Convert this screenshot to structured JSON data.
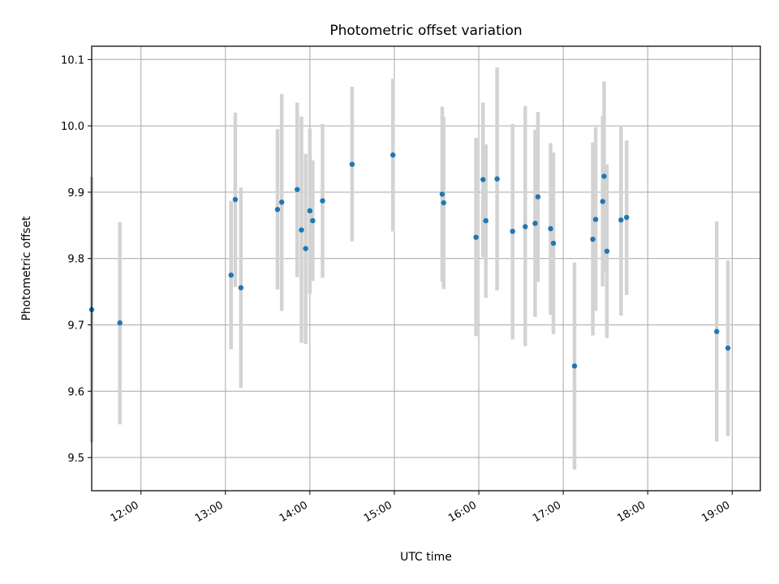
{
  "chart_data": {
    "type": "scatter",
    "title": "Photometric offset variation",
    "xlabel": "UTC time",
    "ylabel": "Photometric offset",
    "grid": true,
    "xlim": [
      "11:25",
      "19:20"
    ],
    "ylim": [
      9.45,
      10.12
    ],
    "x_ticks": [
      "12:00",
      "13:00",
      "14:00",
      "15:00",
      "16:00",
      "17:00",
      "18:00",
      "19:00"
    ],
    "y_ticks": [
      "9.5",
      "9.6",
      "9.7",
      "9.8",
      "9.9",
      "10.0",
      "10.1"
    ],
    "marker_color": "#1f77b4",
    "errorbar_color": "#d3d3d3",
    "points": [
      {
        "x": "11:25",
        "y": 9.723,
        "ymin": 9.523,
        "ymax": 9.923
      },
      {
        "x": "11:45",
        "y": 9.703,
        "ymin": 9.55,
        "ymax": 9.855
      },
      {
        "x": "13:04",
        "y": 9.775,
        "ymin": 9.663,
        "ymax": 9.887
      },
      {
        "x": "13:07",
        "y": 9.889,
        "ymin": 9.757,
        "ymax": 10.02
      },
      {
        "x": "13:11",
        "y": 9.756,
        "ymin": 9.605,
        "ymax": 9.907
      },
      {
        "x": "13:37",
        "y": 9.874,
        "ymin": 9.753,
        "ymax": 9.995
      },
      {
        "x": "13:40",
        "y": 9.885,
        "ymin": 9.721,
        "ymax": 10.048
      },
      {
        "x": "13:51",
        "y": 9.904,
        "ymin": 9.772,
        "ymax": 10.035
      },
      {
        "x": "13:54",
        "y": 9.843,
        "ymin": 9.673,
        "ymax": 10.014
      },
      {
        "x": "13:57",
        "y": 9.815,
        "ymin": 9.671,
        "ymax": 9.958
      },
      {
        "x": "14:00",
        "y": 9.872,
        "ymin": 9.747,
        "ymax": 9.996
      },
      {
        "x": "14:02",
        "y": 9.857,
        "ymin": 9.766,
        "ymax": 9.948
      },
      {
        "x": "14:09",
        "y": 9.887,
        "ymin": 9.771,
        "ymax": 10.003
      },
      {
        "x": "14:30",
        "y": 9.942,
        "ymin": 9.826,
        "ymax": 10.059
      },
      {
        "x": "14:59",
        "y": 9.956,
        "ymin": 9.841,
        "ymax": 10.071
      },
      {
        "x": "15:34",
        "y": 9.897,
        "ymin": 9.765,
        "ymax": 10.029
      },
      {
        "x": "15:35",
        "y": 9.884,
        "ymin": 9.754,
        "ymax": 10.014
      },
      {
        "x": "15:58",
        "y": 9.832,
        "ymin": 9.683,
        "ymax": 9.982
      },
      {
        "x": "16:03",
        "y": 9.919,
        "ymin": 9.802,
        "ymax": 10.035
      },
      {
        "x": "16:05",
        "y": 9.857,
        "ymin": 9.741,
        "ymax": 9.972
      },
      {
        "x": "16:13",
        "y": 9.92,
        "ymin": 9.752,
        "ymax": 10.088
      },
      {
        "x": "16:24",
        "y": 9.841,
        "ymin": 9.678,
        "ymax": 10.003
      },
      {
        "x": "16:33",
        "y": 9.848,
        "ymin": 9.668,
        "ymax": 10.03
      },
      {
        "x": "16:40",
        "y": 9.853,
        "ymin": 9.712,
        "ymax": 9.994
      },
      {
        "x": "16:42",
        "y": 9.893,
        "ymin": 9.765,
        "ymax": 10.021
      },
      {
        "x": "16:51",
        "y": 9.845,
        "ymin": 9.715,
        "ymax": 9.974
      },
      {
        "x": "16:53",
        "y": 9.823,
        "ymin": 9.686,
        "ymax": 9.96
      },
      {
        "x": "17:08",
        "y": 9.638,
        "ymin": 9.482,
        "ymax": 9.794
      },
      {
        "x": "17:21",
        "y": 9.829,
        "ymin": 9.684,
        "ymax": 9.975
      },
      {
        "x": "17:23",
        "y": 9.859,
        "ymin": 9.721,
        "ymax": 9.998
      },
      {
        "x": "17:28",
        "y": 9.886,
        "ymin": 9.758,
        "ymax": 10.015
      },
      {
        "x": "17:29",
        "y": 9.924,
        "ymin": 9.781,
        "ymax": 10.067
      },
      {
        "x": "17:31",
        "y": 9.811,
        "ymin": 9.68,
        "ymax": 9.942
      },
      {
        "x": "17:41",
        "y": 9.858,
        "ymin": 9.714,
        "ymax": 10.001
      },
      {
        "x": "17:45",
        "y": 9.862,
        "ymin": 9.745,
        "ymax": 9.978
      },
      {
        "x": "18:49",
        "y": 9.69,
        "ymin": 9.524,
        "ymax": 9.856
      },
      {
        "x": "18:57",
        "y": 9.665,
        "ymin": 9.532,
        "ymax": 9.797
      }
    ]
  }
}
